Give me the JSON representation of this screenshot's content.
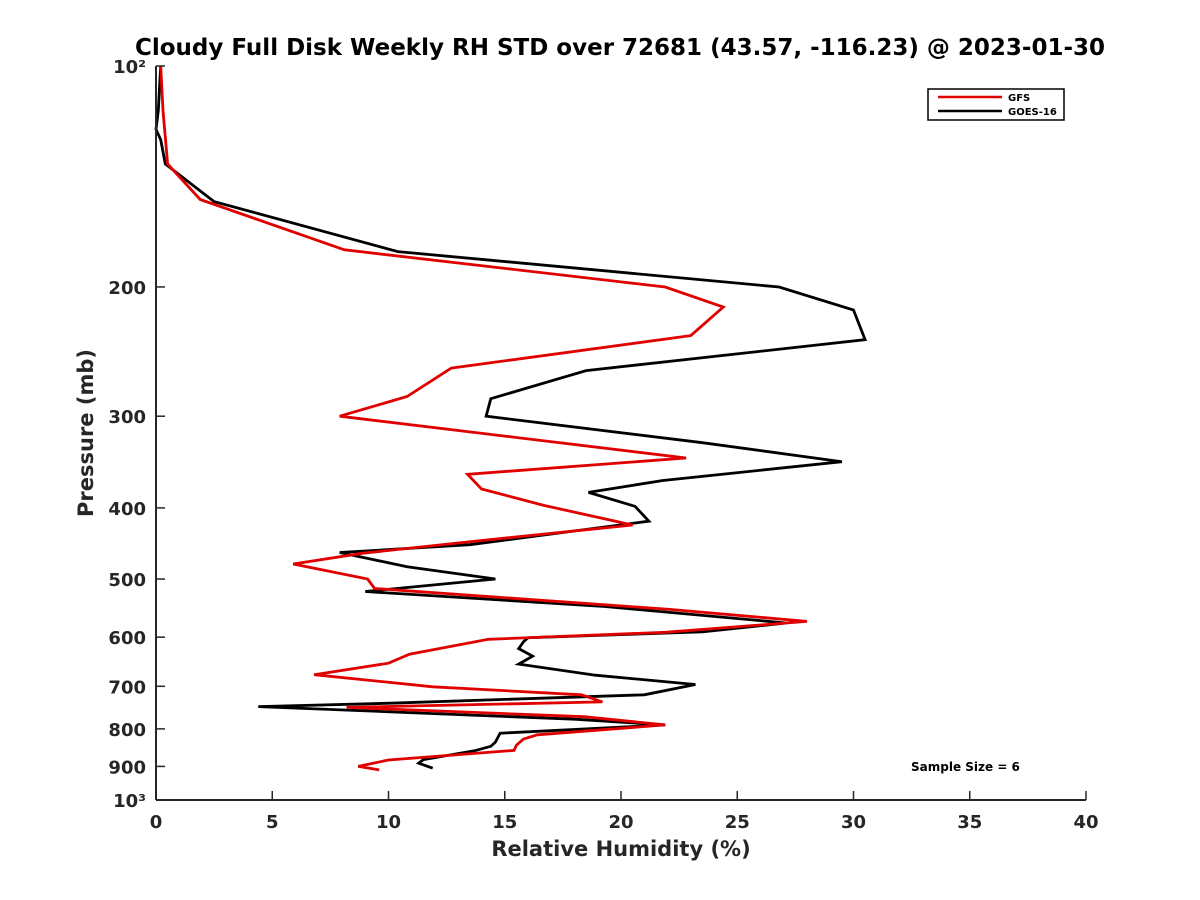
{
  "chart_data": {
    "type": "line",
    "title": "Cloudy Full Disk Weekly RH STD over 72681 (43.57, -116.23) @ 2023-01-30",
    "xlabel": "Relative Humidity (%)",
    "ylabel": "Pressure (mb)",
    "xlim": [
      0,
      40
    ],
    "ylim": [
      100,
      1000
    ],
    "y_scale": "log",
    "y_reversed": true,
    "x_ticks": [
      0,
      5,
      10,
      15,
      20,
      25,
      30,
      35,
      40
    ],
    "x_tick_labels": [
      "0",
      "5",
      "10",
      "15",
      "20",
      "25",
      "30",
      "35",
      "40"
    ],
    "y_ticks": [
      100,
      200,
      300,
      400,
      500,
      600,
      700,
      800,
      900,
      1000
    ],
    "y_tick_labels": [
      "10²",
      "200",
      "300",
      "400",
      "500",
      "600",
      "700",
      "800",
      "900",
      "10³"
    ],
    "grid": false,
    "legend_position": "top-right",
    "annotation": "Sample Size = 6",
    "series": [
      {
        "name": "GFS",
        "color": "#e00000",
        "points": [
          [
            0.2,
            100
          ],
          [
            0.3,
            115
          ],
          [
            0.4,
            125
          ],
          [
            0.5,
            136
          ],
          [
            1.9,
            152
          ],
          [
            8.1,
            178
          ],
          [
            21.9,
            200
          ],
          [
            24.4,
            213
          ],
          [
            23.0,
            233
          ],
          [
            12.7,
            258
          ],
          [
            10.8,
            282
          ],
          [
            7.9,
            300
          ],
          [
            22.8,
            342
          ],
          [
            13.4,
            360
          ],
          [
            14.0,
            377
          ],
          [
            16.7,
            397
          ],
          [
            20.5,
            422
          ],
          [
            14.0,
            443
          ],
          [
            8.9,
            461
          ],
          [
            5.9,
            477
          ],
          [
            9.1,
            500
          ],
          [
            9.4,
            515
          ],
          [
            22.1,
            550
          ],
          [
            28.0,
            571
          ],
          [
            21.9,
            591
          ],
          [
            14.3,
            604
          ],
          [
            10.9,
            633
          ],
          [
            10.0,
            651
          ],
          [
            6.8,
            675
          ],
          [
            11.9,
            701
          ],
          [
            18.3,
            719
          ],
          [
            19.2,
            735
          ],
          [
            8.2,
            748
          ],
          [
            18.4,
            770
          ],
          [
            21.9,
            790
          ],
          [
            16.4,
            815
          ],
          [
            15.8,
            826
          ],
          [
            15.5,
            842
          ],
          [
            15.4,
            856
          ],
          [
            10.0,
            882
          ],
          [
            8.7,
            900
          ],
          [
            9.6,
            910
          ]
        ]
      },
      {
        "name": "GOES-16",
        "color": "#000000",
        "points": [
          [
            0.2,
            100
          ],
          [
            0.1,
            115
          ],
          [
            0.0,
            122
          ],
          [
            0.2,
            126
          ],
          [
            0.4,
            136
          ],
          [
            2.5,
            153
          ],
          [
            10.4,
            179
          ],
          [
            26.8,
            200
          ],
          [
            30.0,
            215
          ],
          [
            30.5,
            236
          ],
          [
            18.5,
            260
          ],
          [
            14.4,
            284
          ],
          [
            14.2,
            300
          ],
          [
            23.5,
            326
          ],
          [
            29.5,
            346
          ],
          [
            21.8,
            367
          ],
          [
            18.6,
            381
          ],
          [
            20.6,
            398
          ],
          [
            21.2,
            417
          ],
          [
            13.5,
            449
          ],
          [
            7.9,
            460
          ],
          [
            10.8,
            481
          ],
          [
            14.6,
            500
          ],
          [
            9.0,
            520
          ],
          [
            19.3,
            545
          ],
          [
            27.1,
            574
          ],
          [
            23.5,
            590
          ],
          [
            16.0,
            601
          ],
          [
            15.8,
            609
          ],
          [
            15.6,
            622
          ],
          [
            16.2,
            637
          ],
          [
            15.6,
            653
          ],
          [
            18.9,
            676
          ],
          [
            23.2,
            696
          ],
          [
            21.0,
            719
          ],
          [
            10.1,
            738
          ],
          [
            4.4,
            746
          ],
          [
            18.0,
            776
          ],
          [
            21.9,
            790
          ],
          [
            14.8,
            811
          ],
          [
            14.6,
            834
          ],
          [
            14.4,
            845
          ],
          [
            13.7,
            857
          ],
          [
            11.5,
            881
          ],
          [
            11.3,
            891
          ],
          [
            11.9,
            905
          ]
        ]
      }
    ]
  }
}
